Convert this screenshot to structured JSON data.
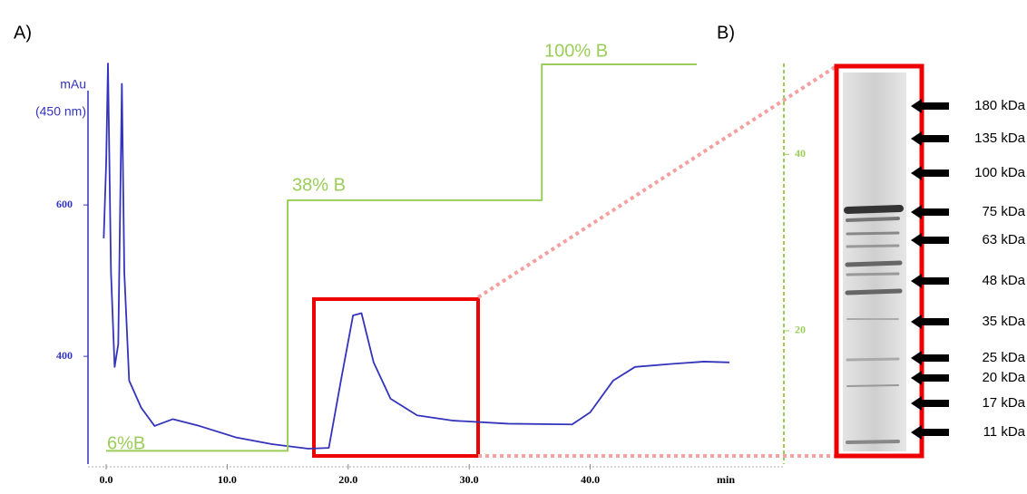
{
  "chart_data": {
    "type": "line",
    "y_label": [
      "mAu",
      "(450 nm)"
    ],
    "x_label": "min",
    "xlim": [
      -1.5,
      56
    ],
    "ylim": [
      260,
      787
    ],
    "y2lim": [
      5.1,
      50.3
    ],
    "xticks": [
      {
        "value": 0,
        "label": "0.0"
      },
      {
        "value": 10,
        "label": "10.0"
      },
      {
        "value": 20,
        "label": "20.0"
      },
      {
        "value": 30,
        "label": "30.0"
      },
      {
        "value": 40,
        "label": "40.0"
      }
    ],
    "yticks": [
      400,
      600
    ],
    "y2ticks": [
      20,
      40
    ],
    "annotations": [
      "6%B",
      "38% B",
      "100% B"
    ],
    "series": [
      {
        "color": "#3333bb",
        "x": [
          -0.2,
          0,
          0.15,
          0.4,
          0.7,
          1.0,
          1.3,
          1.5,
          1.9,
          2.9,
          4.0,
          5.5,
          7.7,
          10.7,
          13.7,
          16.7,
          18.4,
          19.4,
          20.4,
          21.1,
          22.1,
          23.5,
          25.7,
          28.7,
          33.2,
          38.5,
          40.0,
          41.9,
          43.7,
          46.7,
          49.4,
          51.5
        ],
        "values": [
          556,
          655,
          787,
          511,
          386,
          416,
          760,
          511,
          368,
          332,
          308,
          317,
          308,
          293,
          284,
          278,
          279,
          368,
          454,
          457,
          392,
          344,
          322,
          315,
          311,
          310,
          326,
          368,
          386,
          390,
          393,
          392
        ]
      },
      {
        "color": "#9acd5a",
        "axis": "y2",
        "x": [
          0,
          15,
          15,
          36,
          36,
          48.8
        ],
        "values": [
          6.4,
          6.4,
          34.8,
          34.8,
          50.2,
          50.2
        ]
      }
    ]
  },
  "panel_labels": [
    "A)",
    "B)"
  ],
  "gel": {
    "markers": [
      "180 kDa",
      "135 kDa",
      "100 kDa",
      "75 kDa",
      "63 kDa",
      "48 kDa",
      "35 kDa",
      "25 kDa",
      "20 kDa",
      "17 kDa",
      "11 kDa"
    ]
  }
}
